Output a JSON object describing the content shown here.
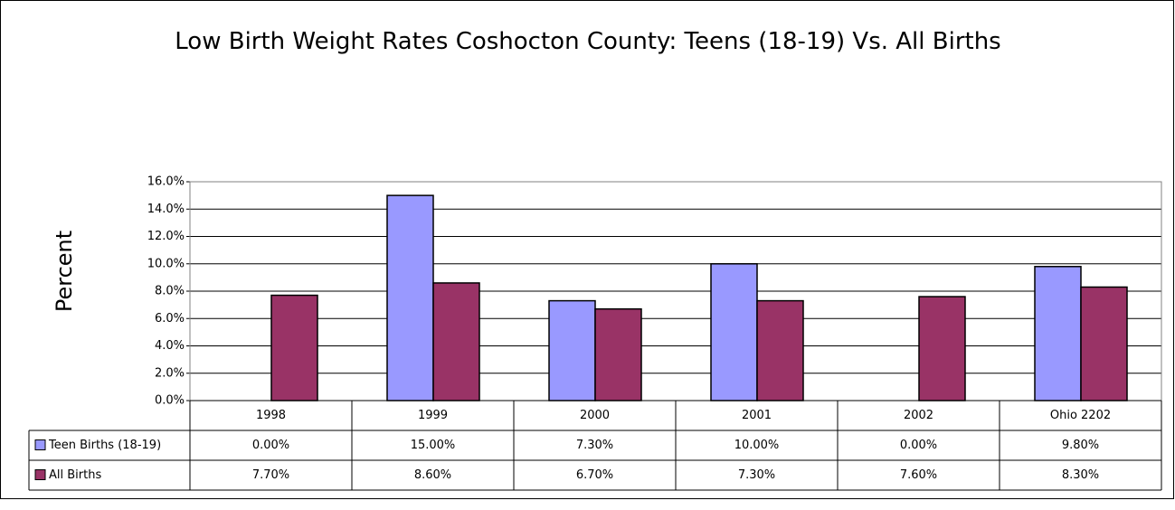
{
  "chart_data": {
    "type": "bar",
    "title": "Low Birth Weight Rates Coshocton County: Teens (18-19) Vs. All Births",
    "y_label": "Percent",
    "categories": [
      "1998",
      "1999",
      "2000",
      "2001",
      "2002",
      "Ohio 2202"
    ],
    "series": [
      {
        "name": "Teen Births (18-19)",
        "color": "#9999ff",
        "values": [
          0,
          15,
          7.3,
          10,
          0,
          9.8
        ],
        "value_labels": [
          "0.00%",
          "15.00%",
          "7.30%",
          "10.00%",
          "0.00%",
          "9.80%"
        ]
      },
      {
        "name": "All Births",
        "color": "#993366",
        "values": [
          7.7,
          8.6,
          6.7,
          7.3,
          7.6,
          8.3
        ],
        "value_labels": [
          "7.70%",
          "8.60%",
          "6.70%",
          "7.30%",
          "7.60%",
          "8.30%"
        ]
      }
    ],
    "ylim": [
      0,
      16
    ],
    "yticks": [
      {
        "value": 0,
        "label": "0.0%"
      },
      {
        "value": 2,
        "label": "2.0%"
      },
      {
        "value": 4,
        "label": "4.0%"
      },
      {
        "value": 6,
        "label": "6.0%"
      },
      {
        "value": 8,
        "label": "8.0%"
      },
      {
        "value": 10,
        "label": "10.0%"
      },
      {
        "value": 12,
        "label": "12.0%"
      },
      {
        "value": 14,
        "label": "14.0%"
      },
      {
        "value": 16,
        "label": "16.0%"
      }
    ],
    "grid": true
  }
}
